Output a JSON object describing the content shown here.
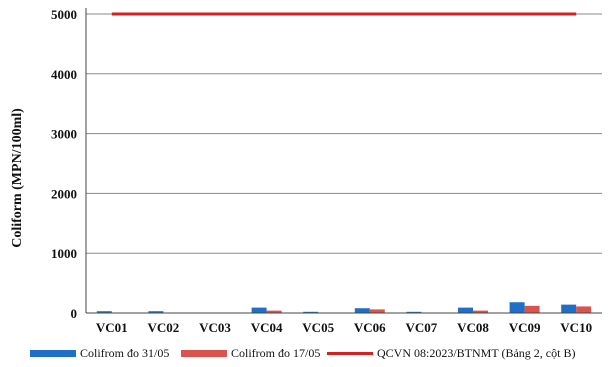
{
  "chart_data": {
    "type": "bar",
    "title": "",
    "xlabel": "",
    "ylabel": "Coliform (MPN/100ml)",
    "ylim": [
      0,
      5000
    ],
    "yticks": [
      "0",
      "1000",
      "2000",
      "3000",
      "4000",
      "5000"
    ],
    "ytick_values": [
      0,
      1000,
      2000,
      3000,
      4000,
      5000
    ],
    "grid": true,
    "legend_position": "bottom",
    "categories": [
      "VC01",
      "VC02",
      "VC03",
      "VC04",
      "VC05",
      "VC06",
      "VC07",
      "VC08",
      "VC09",
      "VC10"
    ],
    "series": [
      {
        "name": "Colifrom đo 31/05",
        "kind": "bar",
        "color": "#1f6fc9",
        "values": [
          30,
          30,
          0,
          90,
          20,
          80,
          20,
          90,
          180,
          140
        ]
      },
      {
        "name": "Colifrom đo 17/05",
        "kind": "bar",
        "color": "#d9534f",
        "values": [
          0,
          0,
          0,
          40,
          0,
          60,
          0,
          40,
          120,
          110
        ]
      },
      {
        "name": "QCVN 08:2023/BTNMT (Bảng 2, cột B)",
        "kind": "line",
        "color": "#d42020",
        "values": [
          5000,
          5000,
          5000,
          5000,
          5000,
          5000,
          5000,
          5000,
          5000,
          5000
        ]
      }
    ]
  }
}
